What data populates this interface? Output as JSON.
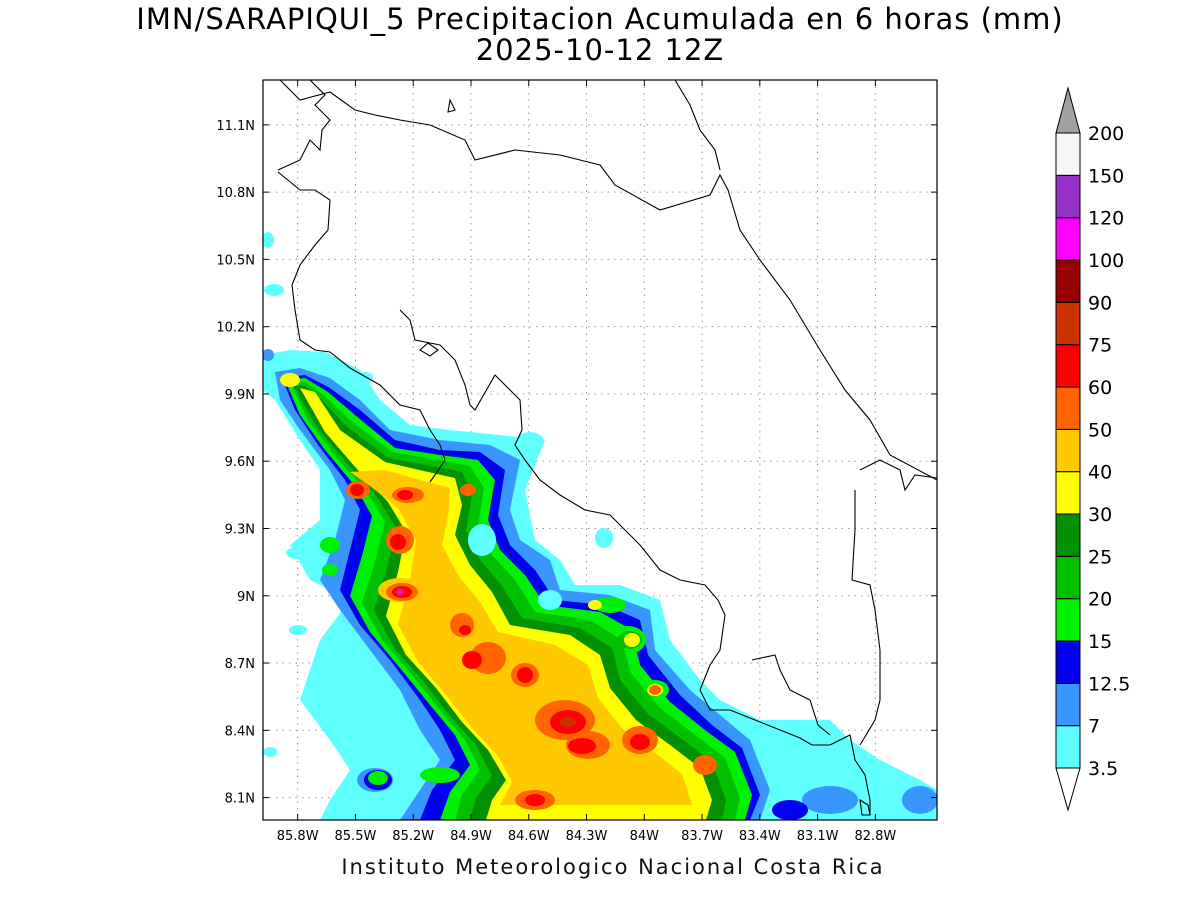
{
  "title_line1": "IMN/SARAPIQUI_5 Precipitacion Acumulada en 6 horas (mm)",
  "title_line2": "2025-10-12 12Z",
  "credit": "Instituto Meteorologico Nacional Costa Rica",
  "map": {
    "lon_range": [
      -85.98,
      -82.48
    ],
    "lat_range": [
      8.0,
      11.3
    ],
    "lon_ticks": [
      {
        "value": -85.8,
        "label": "85.8W"
      },
      {
        "value": -85.5,
        "label": "85.5W"
      },
      {
        "value": -85.2,
        "label": "85.2W"
      },
      {
        "value": -84.9,
        "label": "84.9W"
      },
      {
        "value": -84.6,
        "label": "84.6W"
      },
      {
        "value": -84.3,
        "label": "84.3W"
      },
      {
        "value": -84.0,
        "label": "84W"
      },
      {
        "value": -83.7,
        "label": "83.7W"
      },
      {
        "value": -83.4,
        "label": "83.4W"
      },
      {
        "value": -83.1,
        "label": "83.1W"
      },
      {
        "value": -82.8,
        "label": "82.8W"
      }
    ],
    "lat_ticks": [
      {
        "value": 11.1,
        "label": "11.1N"
      },
      {
        "value": 10.8,
        "label": "10.8N"
      },
      {
        "value": 10.5,
        "label": "10.5N"
      },
      {
        "value": 10.2,
        "label": "10.2N"
      },
      {
        "value": 9.9,
        "label": "9.9N"
      },
      {
        "value": 9.6,
        "label": "9.6N"
      },
      {
        "value": 9.3,
        "label": "9.3N"
      },
      {
        "value": 9.0,
        "label": "9N"
      },
      {
        "value": 8.7,
        "label": "8.7N"
      },
      {
        "value": 8.4,
        "label": "8.4N"
      },
      {
        "value": 8.1,
        "label": "8.1N"
      }
    ],
    "gridlines": true
  },
  "colorbar": {
    "levels": [
      "3.5",
      "7",
      "12.5",
      "15",
      "20",
      "25",
      "30",
      "40",
      "50",
      "60",
      "75",
      "90",
      "100",
      "120",
      "150",
      "200"
    ],
    "colors": [
      "#5fffff",
      "#3a96ff",
      "#0000f0",
      "#00f000",
      "#00c000",
      "#009000",
      "#ffff00",
      "#ffc800",
      "#ff6400",
      "#ff0000",
      "#cc3200",
      "#960000",
      "#ff00ff",
      "#9632c8",
      "#f5f5f5"
    ],
    "upper_arrow_color": "#a0a0a0",
    "lower_arrow_color": "#ffffff"
  }
}
